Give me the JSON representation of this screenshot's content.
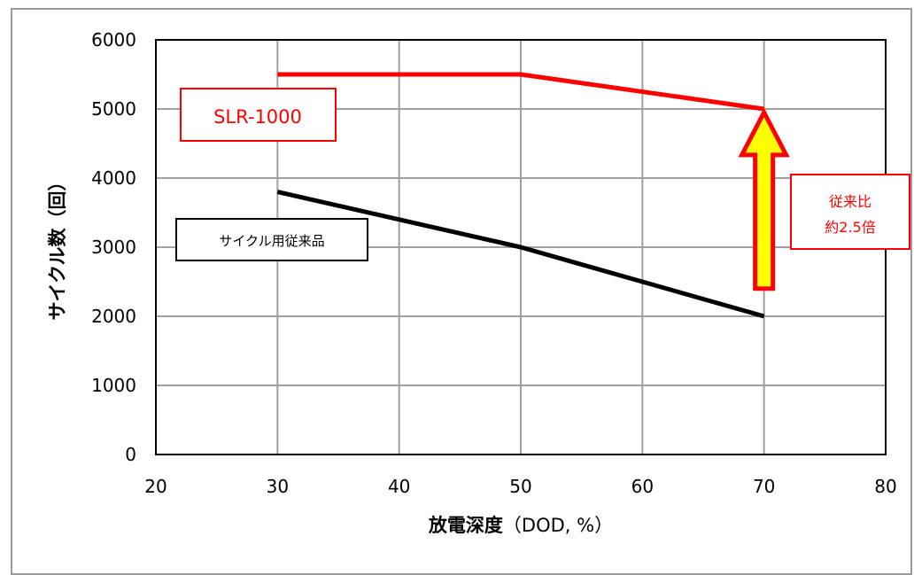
{
  "chart_data": {
    "type": "line",
    "xlim": [
      20,
      80
    ],
    "ylim": [
      0,
      6000
    ],
    "x_ticks": [
      20,
      30,
      40,
      50,
      60,
      70,
      80
    ],
    "y_ticks": [
      0,
      1000,
      2000,
      3000,
      4000,
      5000,
      6000
    ],
    "grid": true,
    "ylabel": "サイクル数（回）",
    "xlabel_main": "放電深度",
    "xlabel_unit": "（DOD, %）",
    "series": [
      {
        "name": "SLR-1000",
        "color": "#ff0000",
        "x": [
          30,
          50,
          70
        ],
        "y": [
          5500,
          5500,
          5000
        ]
      },
      {
        "name": "サイクル用従来品",
        "color": "#000000",
        "x": [
          30,
          50,
          70
        ],
        "y": [
          3800,
          3000,
          2000
        ]
      }
    ],
    "annotation": {
      "line1": "従来比",
      "line2": "約2.5倍",
      "color": "#ff0000",
      "arrow_fill": "#ffff00",
      "arrow_stroke": "#ff0000",
      "arrow_x": 70,
      "arrow_from_y": 2400,
      "arrow_to_y": 4950
    }
  }
}
